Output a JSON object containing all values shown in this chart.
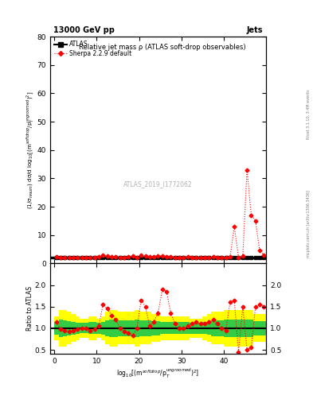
{
  "title_left": "13000 GeV pp",
  "title_right": "Jets",
  "plot_title": "Relative jet mass ρ (ATLAS soft-drop observables)",
  "ylabel_main": "(1/σ$_{resum}$) dσ/d log$_{10}$[(m$^{soft drop}$/p$_T^{ungroomed}$)$^2$]",
  "ylabel_ratio": "Ratio to ATLAS",
  "xlabel": "log$_{10}$[(m$^{soft drop}$/p$_T^{ungroomed}$)$^2$]",
  "watermark": "ATLAS_2019_I1772062",
  "right_label": "mcplots.cern.ch [arXiv:1306.3436]",
  "rivet_label": "Rivet 3.1.10, 3.4M events",
  "xmin": -1,
  "xmax": 50,
  "xticks": [
    0,
    10,
    20,
    30,
    40
  ],
  "ymin_main": 0,
  "ymax_main": 80,
  "yticks_main": [
    0,
    10,
    20,
    30,
    40,
    50,
    60,
    70,
    80
  ],
  "ymin_ratio": 0.4,
  "ymax_ratio": 2.5,
  "yticks_ratio": [
    0.5,
    1.0,
    1.5,
    2.0
  ],
  "atlas_x": [
    0.5,
    1.5,
    2.5,
    3.5,
    4.5,
    5.5,
    6.5,
    7.5,
    8.5,
    9.5,
    10.5,
    11.5,
    12.5,
    13.5,
    14.5,
    15.5,
    16.5,
    17.5,
    18.5,
    19.5,
    20.5,
    21.5,
    22.5,
    23.5,
    24.5,
    25.5,
    26.5,
    27.5,
    28.5,
    29.5,
    30.5,
    31.5,
    32.5,
    33.5,
    34.5,
    35.5,
    36.5,
    37.5,
    38.5,
    39.5,
    40.5,
    41.5,
    42.5,
    43.5,
    44.5,
    45.5,
    46.5,
    47.5,
    48.5,
    49.5
  ],
  "atlas_y": [
    2.0,
    2.0,
    2.0,
    2.0,
    2.0,
    2.0,
    2.0,
    2.0,
    2.0,
    2.0,
    2.0,
    2.0,
    2.0,
    2.0,
    2.0,
    2.0,
    2.0,
    2.0,
    2.0,
    2.0,
    2.0,
    2.0,
    2.0,
    2.0,
    2.0,
    2.0,
    2.0,
    2.0,
    2.0,
    2.0,
    2.0,
    2.0,
    2.0,
    2.0,
    2.0,
    2.0,
    2.0,
    2.0,
    2.0,
    2.0,
    2.0,
    2.0,
    2.0,
    2.0,
    2.0,
    2.0,
    2.0,
    2.0,
    2.0,
    2.0
  ],
  "sherpa_x": [
    0.5,
    1.5,
    2.5,
    3.5,
    4.5,
    5.5,
    6.5,
    7.5,
    8.5,
    9.5,
    10.5,
    11.5,
    12.5,
    13.5,
    14.5,
    15.5,
    16.5,
    17.5,
    18.5,
    19.5,
    20.5,
    21.5,
    22.5,
    23.5,
    24.5,
    25.5,
    26.5,
    27.5,
    28.5,
    29.5,
    30.5,
    31.5,
    32.5,
    33.5,
    34.5,
    35.5,
    36.5,
    37.5,
    38.5,
    39.5,
    40.5,
    41.5,
    42.5,
    43.5,
    44.5,
    45.5,
    46.5,
    47.5,
    48.5,
    49.5
  ],
  "sherpa_y": [
    2.3,
    2.1,
    2.05,
    2.0,
    2.0,
    2.0,
    2.0,
    2.0,
    2.0,
    2.1,
    2.2,
    2.8,
    2.6,
    2.4,
    2.2,
    2.05,
    2.1,
    2.3,
    2.5,
    2.1,
    3.0,
    2.6,
    2.2,
    2.3,
    2.7,
    2.6,
    2.4,
    2.2,
    2.05,
    2.1,
    2.15,
    2.2,
    2.15,
    2.1,
    2.05,
    2.1,
    2.15,
    2.2,
    2.1,
    2.05,
    2.1,
    2.3,
    13.0,
    2.1,
    2.5,
    33.0,
    17.0,
    15.0,
    4.5,
    3.0
  ],
  "ratio_sherpa_y": [
    1.15,
    0.97,
    0.95,
    0.93,
    0.95,
    0.97,
    1.0,
    1.0,
    0.95,
    0.98,
    1.05,
    1.55,
    1.45,
    1.3,
    1.2,
    1.0,
    0.93,
    0.88,
    0.83,
    1.0,
    1.65,
    1.5,
    1.05,
    1.15,
    1.35,
    1.9,
    1.85,
    1.35,
    1.1,
    1.0,
    1.0,
    1.05,
    1.1,
    1.15,
    1.1,
    1.1,
    1.15,
    1.2,
    1.1,
    1.0,
    0.95,
    1.6,
    1.65,
    0.45,
    1.5,
    0.5,
    0.55,
    1.5,
    1.55,
    1.5
  ],
  "band_yellow_lo": [
    0.72,
    0.58,
    0.58,
    0.62,
    0.68,
    0.73,
    0.78,
    0.78,
    0.73,
    0.73,
    0.78,
    0.73,
    0.62,
    0.58,
    0.58,
    0.62,
    0.62,
    0.62,
    0.62,
    0.58,
    0.62,
    0.62,
    0.62,
    0.68,
    0.68,
    0.73,
    0.73,
    0.73,
    0.73,
    0.73,
    0.73,
    0.73,
    0.78,
    0.78,
    0.78,
    0.73,
    0.68,
    0.62,
    0.62,
    0.62,
    0.58,
    0.58,
    0.58,
    0.58,
    0.58,
    0.58,
    0.58,
    0.68,
    0.68,
    0.68
  ],
  "band_yellow_hi": [
    1.28,
    1.42,
    1.42,
    1.38,
    1.32,
    1.27,
    1.22,
    1.22,
    1.27,
    1.27,
    1.22,
    1.27,
    1.38,
    1.42,
    1.42,
    1.38,
    1.38,
    1.38,
    1.38,
    1.42,
    1.38,
    1.38,
    1.38,
    1.32,
    1.32,
    1.27,
    1.27,
    1.27,
    1.27,
    1.27,
    1.27,
    1.27,
    1.22,
    1.22,
    1.22,
    1.27,
    1.32,
    1.38,
    1.38,
    1.38,
    1.42,
    1.42,
    1.42,
    1.42,
    1.42,
    1.42,
    1.42,
    1.32,
    1.32,
    1.32
  ],
  "band_green_lo": [
    0.85,
    0.8,
    0.82,
    0.83,
    0.85,
    0.87,
    0.88,
    0.88,
    0.86,
    0.86,
    0.87,
    0.85,
    0.82,
    0.8,
    0.8,
    0.82,
    0.82,
    0.82,
    0.82,
    0.8,
    0.82,
    0.82,
    0.82,
    0.84,
    0.84,
    0.86,
    0.86,
    0.86,
    0.86,
    0.86,
    0.86,
    0.86,
    0.87,
    0.87,
    0.87,
    0.86,
    0.85,
    0.82,
    0.82,
    0.82,
    0.8,
    0.8,
    0.8,
    0.8,
    0.8,
    0.8,
    0.8,
    0.84,
    0.84,
    0.84
  ],
  "band_green_hi": [
    1.15,
    1.2,
    1.18,
    1.17,
    1.15,
    1.13,
    1.12,
    1.12,
    1.14,
    1.14,
    1.13,
    1.15,
    1.18,
    1.2,
    1.2,
    1.18,
    1.18,
    1.18,
    1.18,
    1.2,
    1.18,
    1.18,
    1.18,
    1.16,
    1.16,
    1.14,
    1.14,
    1.14,
    1.14,
    1.14,
    1.14,
    1.14,
    1.13,
    1.13,
    1.13,
    1.14,
    1.15,
    1.18,
    1.18,
    1.18,
    1.2,
    1.2,
    1.2,
    1.2,
    1.2,
    1.2,
    1.2,
    1.16,
    1.16,
    1.16
  ],
  "color_atlas": "black",
  "color_sherpa": "red",
  "color_yellow": "#ffff00",
  "color_green": "#33cc44",
  "legend_atlas": "ATLAS",
  "legend_sherpa": "Sherpa 2.2.9 default"
}
